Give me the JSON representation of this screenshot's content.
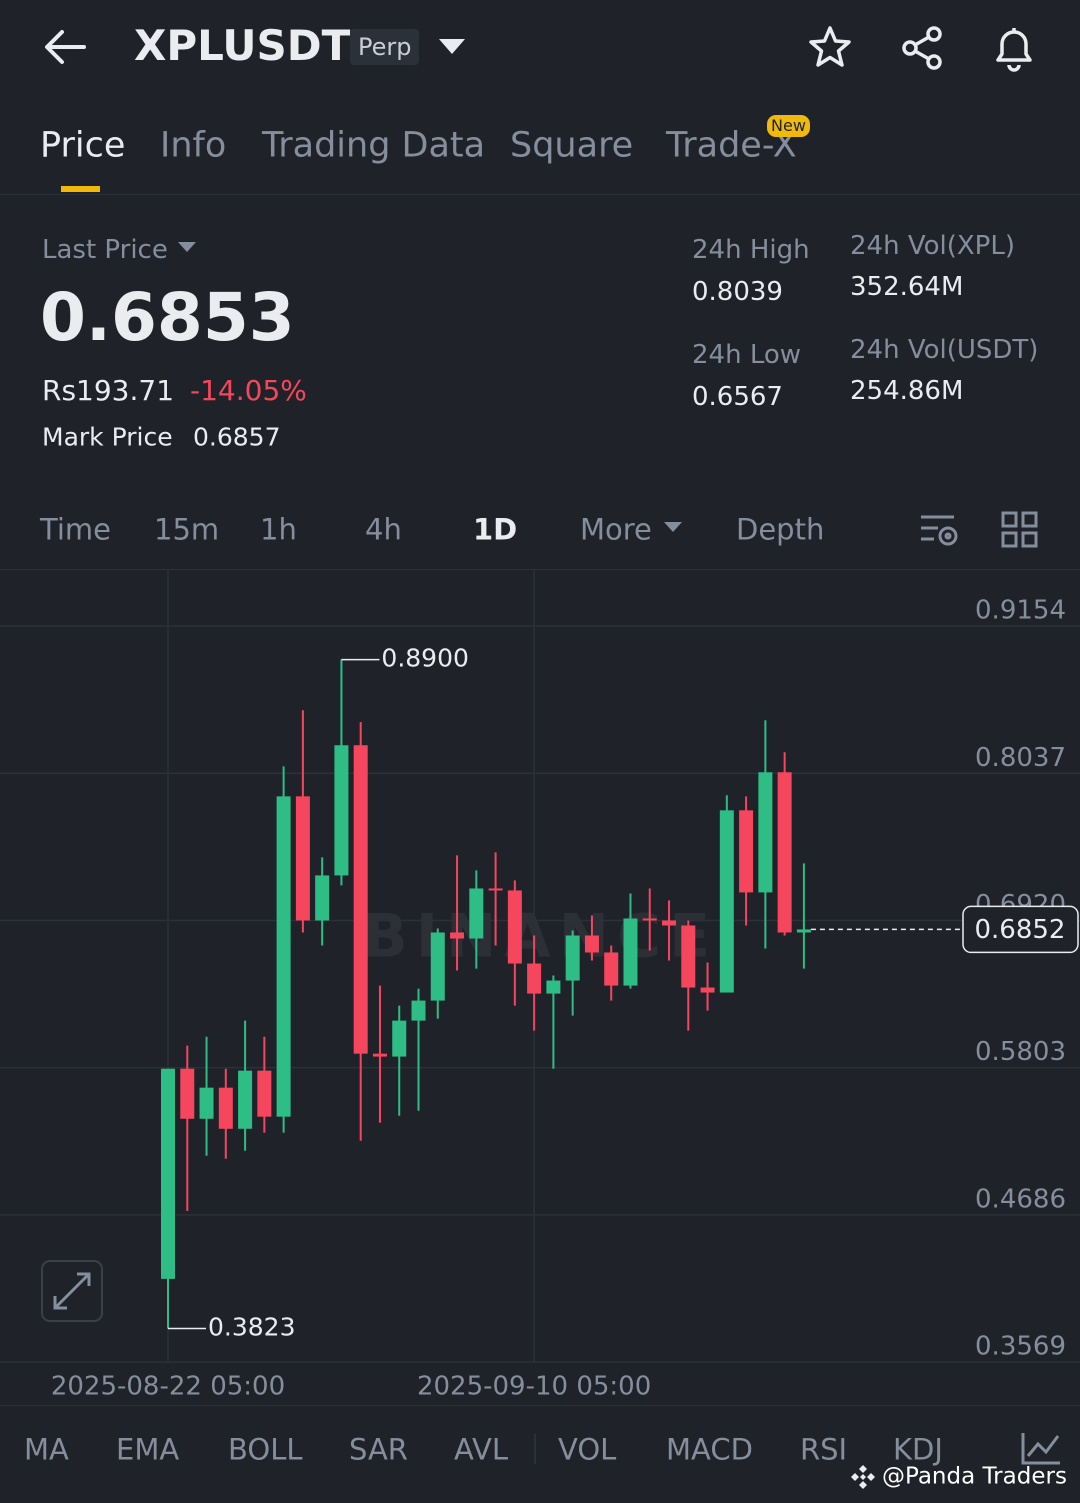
{
  "header": {
    "symbol": "XPLUSDT",
    "badge": "Perp"
  },
  "tabs": [
    "Price",
    "Info",
    "Trading Data",
    "Square",
    "Trade-X"
  ],
  "new_badge": "New",
  "ticker": {
    "last_price_label": "Last Price",
    "last_price": "0.6853",
    "local_price": "Rs193.71",
    "change": "-14.05%",
    "mark_price_label": "Mark Price",
    "mark_price": "0.6857"
  },
  "stats": [
    {
      "label": "24h High",
      "value": "0.8039"
    },
    {
      "label": "24h Low",
      "value": "0.6567"
    },
    {
      "label": "24h Vol(XPL)",
      "value": "352.64M"
    },
    {
      "label": "24h Vol(USDT)",
      "value": "254.86M"
    }
  ],
  "intervals": [
    "Time",
    "15m",
    "1h",
    "4h",
    "1D",
    "More",
    "Depth"
  ],
  "indicators": [
    "MA",
    "EMA",
    "BOLL",
    "SAR",
    "AVL",
    "VOL",
    "MACD",
    "RSI",
    "KDJ"
  ],
  "footer_watermark": "@Panda Traders",
  "chart_data": {
    "type": "candlestick",
    "watermark": "BINANCE",
    "categories": [
      "2025-08-22 05:00",
      null,
      null,
      null,
      null,
      null,
      null,
      null,
      null,
      null,
      null,
      null,
      null,
      null,
      null,
      null,
      null,
      null,
      null,
      "2025-09-10 05:00",
      null,
      null,
      null,
      null,
      null,
      null,
      null,
      null,
      null,
      null,
      null,
      null,
      null,
      null
    ],
    "open": [
      0.42,
      0.5795,
      0.5415,
      0.5651,
      0.5339,
      0.578,
      0.5431,
      0.7862,
      0.692,
      0.7262,
      0.825,
      0.5909,
      0.5887,
      0.616,
      0.6312,
      0.6829,
      0.6783,
      0.7163,
      0.7148,
      0.6593,
      0.6365,
      0.6464,
      0.6806,
      0.6677,
      0.6426,
      0.6935,
      0.692,
      0.6882,
      0.6411,
      0.6373,
      0.7756,
      0.7133,
      0.8045,
      0.6829
    ],
    "high": [
      0.5795,
      0.597,
      0.6038,
      0.5795,
      0.616,
      0.6038,
      0.809,
      0.8516,
      0.7399,
      0.89,
      0.8425,
      0.6426,
      0.6274,
      0.6403,
      0.6859,
      0.7414,
      0.73,
      0.7437,
      0.7224,
      0.6806,
      0.6502,
      0.6844,
      0.6958,
      0.673,
      0.7125,
      0.7163,
      0.7072,
      0.692,
      0.6601,
      0.787,
      0.7862,
      0.844,
      0.8197,
      0.7353
    ],
    "low": [
      0.3823,
      0.4716,
      0.5134,
      0.5112,
      0.5172,
      0.5309,
      0.5309,
      0.6829,
      0.673,
      0.7186,
      0.5248,
      0.5385,
      0.5438,
      0.5476,
      0.6175,
      0.654,
      0.6555,
      0.673,
      0.6274,
      0.6084,
      0.5795,
      0.6198,
      0.6616,
      0.6312,
      0.6403,
      0.6692,
      0.6616,
      0.6084,
      0.6236,
      0.6373,
      0.6882,
      0.6707,
      0.6806,
      0.6555
    ],
    "close": [
      0.5795,
      0.5415,
      0.5651,
      0.5339,
      0.578,
      0.5431,
      0.7862,
      0.692,
      0.7262,
      0.825,
      0.5909,
      0.5887,
      0.616,
      0.6312,
      0.6829,
      0.6783,
      0.7163,
      0.7148,
      0.6593,
      0.6365,
      0.6464,
      0.6806,
      0.6677,
      0.6426,
      0.6935,
      0.692,
      0.6882,
      0.6411,
      0.6373,
      0.7756,
      0.7133,
      0.8045,
      0.6829,
      0.6852
    ],
    "up_color": "#2ebd85",
    "down_color": "#f6465d",
    "ylim": [
      0.3569,
      0.958
    ],
    "yticks": [
      0.3569,
      0.4686,
      0.5803,
      {
        "value": 0.692,
        "label": "0.6920"
      },
      0.8037,
      0.9154
    ],
    "grid": true,
    "annotations": {
      "high": {
        "value": 0.89,
        "label": "0.8900"
      },
      "low": 0.3823,
      "last": 0.6852
    }
  }
}
